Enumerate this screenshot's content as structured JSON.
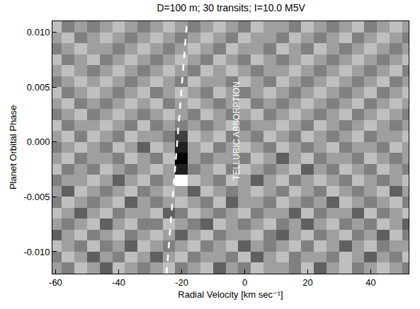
{
  "chart_data": {
    "type": "heatmap",
    "title": "D=100 m; 30 transits; I=10.0 M5V",
    "x_label": "Radial Velocity [km sec⁻¹]",
    "y_label": "Planet Orbital Phase",
    "color": "gray",
    "grid": false,
    "xlim": [
      -61,
      52
    ],
    "ylim": [
      -0.012,
      0.011
    ],
    "xticks": [
      -60,
      -40,
      -20,
      0,
      20,
      40
    ],
    "yticks": [
      {
        "value": -0.01,
        "label": "-0.010"
      },
      {
        "value": -0.005,
        "label": "-0.005"
      },
      {
        "value": 0,
        "label": "0.000"
      },
      {
        "value": 0.005,
        "label": "0.005"
      },
      {
        "value": 0.01,
        "label": "0.010"
      }
    ],
    "x": [
      -60,
      -56,
      -52,
      -48,
      -44,
      -40,
      -36,
      -32,
      -28,
      -24,
      -20,
      -16,
      -12,
      -8,
      -4,
      0,
      4,
      8,
      12,
      16,
      20,
      24,
      28,
      32,
      36,
      40,
      44,
      48,
      52
    ],
    "y": [
      -0.0115,
      -0.0105,
      -0.0095,
      -0.0085,
      -0.0075,
      -0.0065,
      -0.0055,
      -0.0045,
      -0.0035,
      -0.0025,
      -0.0015,
      -0.0005,
      0.0005,
      0.0015,
      0.0025,
      0.0035,
      0.0045,
      0.0055,
      0.0065,
      0.0075,
      0.0085,
      0.0095,
      0.0105
    ],
    "cells": [
      [
        5,
        4,
        6,
        5,
        3,
        6,
        5,
        4,
        5,
        6,
        4,
        5,
        6,
        3,
        5,
        4,
        6,
        5,
        5,
        4,
        6,
        3,
        5,
        6,
        4,
        5,
        6,
        5,
        4
      ],
      [
        4,
        6,
        5,
        3,
        5,
        4,
        6,
        5,
        3,
        5,
        6,
        4,
        5,
        5,
        4,
        6,
        3,
        5,
        6,
        4,
        5,
        5,
        4,
        6,
        5,
        3,
        5,
        4,
        6
      ],
      [
        6,
        5,
        4,
        6,
        4,
        5,
        3,
        6,
        5,
        4,
        5,
        6,
        4,
        5,
        6,
        3,
        5,
        4,
        5,
        6,
        4,
        6,
        5,
        3,
        5,
        6,
        4,
        5,
        5
      ],
      [
        3,
        5,
        6,
        4,
        5,
        6,
        4,
        5,
        6,
        5,
        3,
        5,
        6,
        4,
        5,
        5,
        6,
        4,
        3,
        5,
        6,
        4,
        5,
        6,
        4,
        5,
        3,
        6,
        4
      ],
      [
        5,
        4,
        5,
        6,
        3,
        5,
        6,
        4,
        4,
        6,
        5,
        4,
        3,
        6,
        5,
        4,
        5,
        6,
        4,
        5,
        3,
        5,
        6,
        4,
        5,
        4,
        6,
        5,
        3
      ],
      [
        6,
        5,
        3,
        5,
        6,
        4,
        5,
        5,
        6,
        3,
        4,
        6,
        5,
        4,
        5,
        6,
        4,
        5,
        5,
        3,
        6,
        4,
        5,
        5,
        3,
        6,
        4,
        5,
        6
      ],
      [
        4,
        6,
        5,
        4,
        5,
        6,
        3,
        5,
        4,
        5,
        6,
        5,
        4,
        6,
        3,
        5,
        5,
        4,
        6,
        5,
        4,
        5,
        3,
        6,
        5,
        4,
        5,
        6,
        4
      ],
      [
        5,
        3,
        6,
        5,
        4,
        5,
        6,
        4,
        5,
        6,
        5,
        3,
        6,
        5,
        4,
        5,
        6,
        5,
        4,
        6,
        5,
        4,
        6,
        5,
        4,
        5,
        6,
        3,
        5
      ],
      [
        4,
        5,
        5,
        6,
        5,
        3,
        5,
        6,
        4,
        5,
        8,
        6,
        5,
        4,
        6,
        5,
        3,
        5,
        6,
        4,
        5,
        6,
        5,
        4,
        6,
        5,
        4,
        5,
        6
      ],
      [
        6,
        4,
        5,
        4,
        6,
        5,
        4,
        5,
        6,
        5,
        1,
        4,
        5,
        6,
        4,
        6,
        5,
        4,
        5,
        6,
        3,
        5,
        4,
        6,
        5,
        4,
        6,
        5,
        4
      ],
      [
        5,
        6,
        4,
        5,
        5,
        4,
        6,
        5,
        4,
        6,
        0,
        5,
        4,
        5,
        5,
        4,
        6,
        5,
        3,
        5,
        6,
        4,
        5,
        5,
        4,
        6,
        5,
        4,
        5
      ],
      [
        4,
        5,
        6,
        5,
        4,
        6,
        5,
        3,
        6,
        5,
        1,
        5,
        6,
        4,
        5,
        6,
        5,
        4,
        6,
        5,
        4,
        5,
        6,
        4,
        5,
        5,
        4,
        6,
        5
      ],
      [
        5,
        6,
        4,
        6,
        5,
        4,
        6,
        5,
        5,
        4,
        2,
        6,
        5,
        6,
        4,
        5,
        4,
        6,
        5,
        4,
        6,
        5,
        4,
        5,
        6,
        4,
        5,
        5,
        6
      ],
      [
        6,
        4,
        5,
        5,
        6,
        5,
        4,
        6,
        4,
        5,
        4,
        5,
        4,
        5,
        6,
        4,
        5,
        5,
        6,
        5,
        4,
        6,
        5,
        4,
        5,
        6,
        5,
        4,
        5
      ],
      [
        4,
        5,
        6,
        4,
        5,
        6,
        5,
        4,
        5,
        6,
        5,
        4,
        6,
        5,
        4,
        5,
        6,
        4,
        5,
        6,
        5,
        4,
        5,
        6,
        4,
        5,
        6,
        5,
        4
      ],
      [
        5,
        6,
        4,
        5,
        4,
        5,
        6,
        5,
        6,
        4,
        5,
        6,
        5,
        4,
        5,
        6,
        4,
        5,
        4,
        5,
        6,
        5,
        4,
        5,
        6,
        4,
        5,
        6,
        5
      ],
      [
        6,
        4,
        5,
        6,
        5,
        4,
        5,
        6,
        4,
        5,
        6,
        5,
        4,
        6,
        5,
        4,
        5,
        6,
        5,
        4,
        5,
        6,
        5,
        4,
        5,
        6,
        4,
        5,
        6
      ],
      [
        4,
        5,
        6,
        5,
        6,
        5,
        4,
        5,
        6,
        5,
        4,
        6,
        5,
        5,
        4,
        6,
        5,
        4,
        6,
        5,
        4,
        5,
        6,
        5,
        4,
        5,
        6,
        4,
        5
      ],
      [
        5,
        6,
        5,
        4,
        5,
        6,
        5,
        4,
        5,
        6,
        5,
        4,
        6,
        5,
        6,
        5,
        4,
        5,
        5,
        6,
        5,
        4,
        5,
        6,
        5,
        4,
        5,
        6,
        4
      ],
      [
        6,
        4,
        5,
        6,
        4,
        5,
        6,
        5,
        4,
        5,
        6,
        5,
        4,
        6,
        5,
        4,
        6,
        5,
        4,
        5,
        6,
        5,
        4,
        5,
        6,
        5,
        4,
        5,
        6
      ],
      [
        4,
        5,
        6,
        5,
        5,
        4,
        5,
        6,
        5,
        4,
        5,
        6,
        5,
        4,
        6,
        5,
        5,
        4,
        6,
        5,
        4,
        6,
        5,
        4,
        5,
        6,
        5,
        4,
        5
      ],
      [
        5,
        6,
        4,
        5,
        6,
        5,
        4,
        5,
        6,
        5,
        4,
        5,
        6,
        5,
        4,
        6,
        5,
        5,
        4,
        6,
        5,
        4,
        5,
        6,
        4,
        5,
        6,
        5,
        4
      ],
      [
        6,
        4,
        5,
        4,
        5,
        6,
        5,
        4,
        5,
        6,
        5,
        4,
        5,
        6,
        5,
        4,
        6,
        5,
        5,
        4,
        6,
        5,
        4,
        5,
        6,
        4,
        5,
        6,
        5
      ]
    ],
    "series": [
      {
        "type": "line",
        "x": [
          -24.8,
          -18.3
        ],
        "y": [
          -0.012,
          0.011
        ],
        "color": "white",
        "line_style": "dashed"
      }
    ],
    "annotations": [
      {
        "text": "TELLURIC ABSORPTION",
        "x": -2.5,
        "y": 0.001
      }
    ]
  }
}
